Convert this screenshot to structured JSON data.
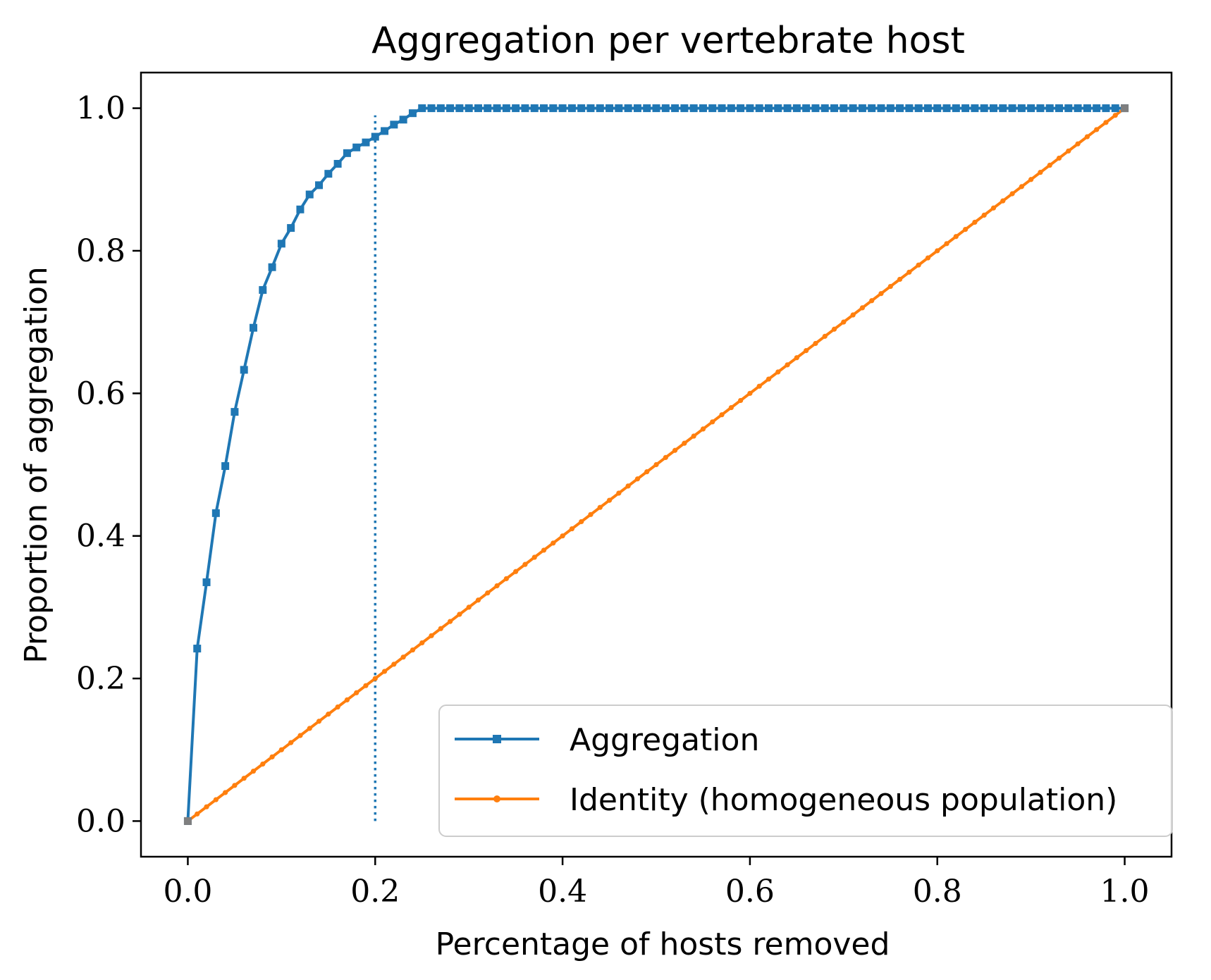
{
  "chart_data": {
    "type": "line",
    "title": "Aggregation per vertebrate host",
    "xlabel": "Percentage of hosts removed",
    "ylabel": "Proportion of aggregation",
    "xlim": [
      -0.05,
      1.05
    ],
    "ylim": [
      -0.05,
      1.05
    ],
    "xticks": [
      {
        "value": 0.0,
        "label": "0.0"
      },
      {
        "value": 0.2,
        "label": "0.2"
      },
      {
        "value": 0.4,
        "label": "0.4"
      },
      {
        "value": 0.6,
        "label": "0.6"
      },
      {
        "value": 0.8,
        "label": "0.8"
      },
      {
        "value": 1.0,
        "label": "1.0"
      }
    ],
    "yticks": [
      {
        "value": 0.0,
        "label": "0.0"
      },
      {
        "value": 0.2,
        "label": "0.2"
      },
      {
        "value": 0.4,
        "label": "0.4"
      },
      {
        "value": 0.6,
        "label": "0.6"
      },
      {
        "value": 0.8,
        "label": "0.8"
      },
      {
        "value": 1.0,
        "label": "1.0"
      }
    ],
    "grid": false,
    "legend_position": "lower-right",
    "vline": {
      "x": 0.2,
      "y_range": [
        0,
        0.99
      ],
      "style": "dotted",
      "color": "#1f77b4"
    },
    "series": [
      {
        "name": "Aggregation",
        "color": "#1f77b4",
        "marker": "square",
        "x": [
          0.0,
          0.01,
          0.02,
          0.03,
          0.04,
          0.05,
          0.06,
          0.07,
          0.08,
          0.09,
          0.1,
          0.11,
          0.12,
          0.13,
          0.14,
          0.15,
          0.16,
          0.17,
          0.18,
          0.19,
          0.2,
          0.21,
          0.22,
          0.23,
          0.24,
          0.25,
          0.26,
          1.0
        ],
        "y": [
          0.0,
          0.242,
          0.335,
          0.432,
          0.498,
          0.574,
          0.633,
          0.692,
          0.745,
          0.777,
          0.81,
          0.832,
          0.858,
          0.879,
          0.892,
          0.908,
          0.922,
          0.937,
          0.945,
          0.952,
          0.96,
          0.968,
          0.977,
          0.984,
          0.993,
          1.0,
          1.0,
          1.0
        ],
        "dense_from": 0.25,
        "dense_step": 0.01
      },
      {
        "name": "Identity (homogeneous population)",
        "color": "#ff7f0e",
        "marker": "dot",
        "x": [
          0.0,
          1.0
        ],
        "y": [
          0.0,
          1.0
        ],
        "dense_step": 0.01
      }
    ]
  }
}
